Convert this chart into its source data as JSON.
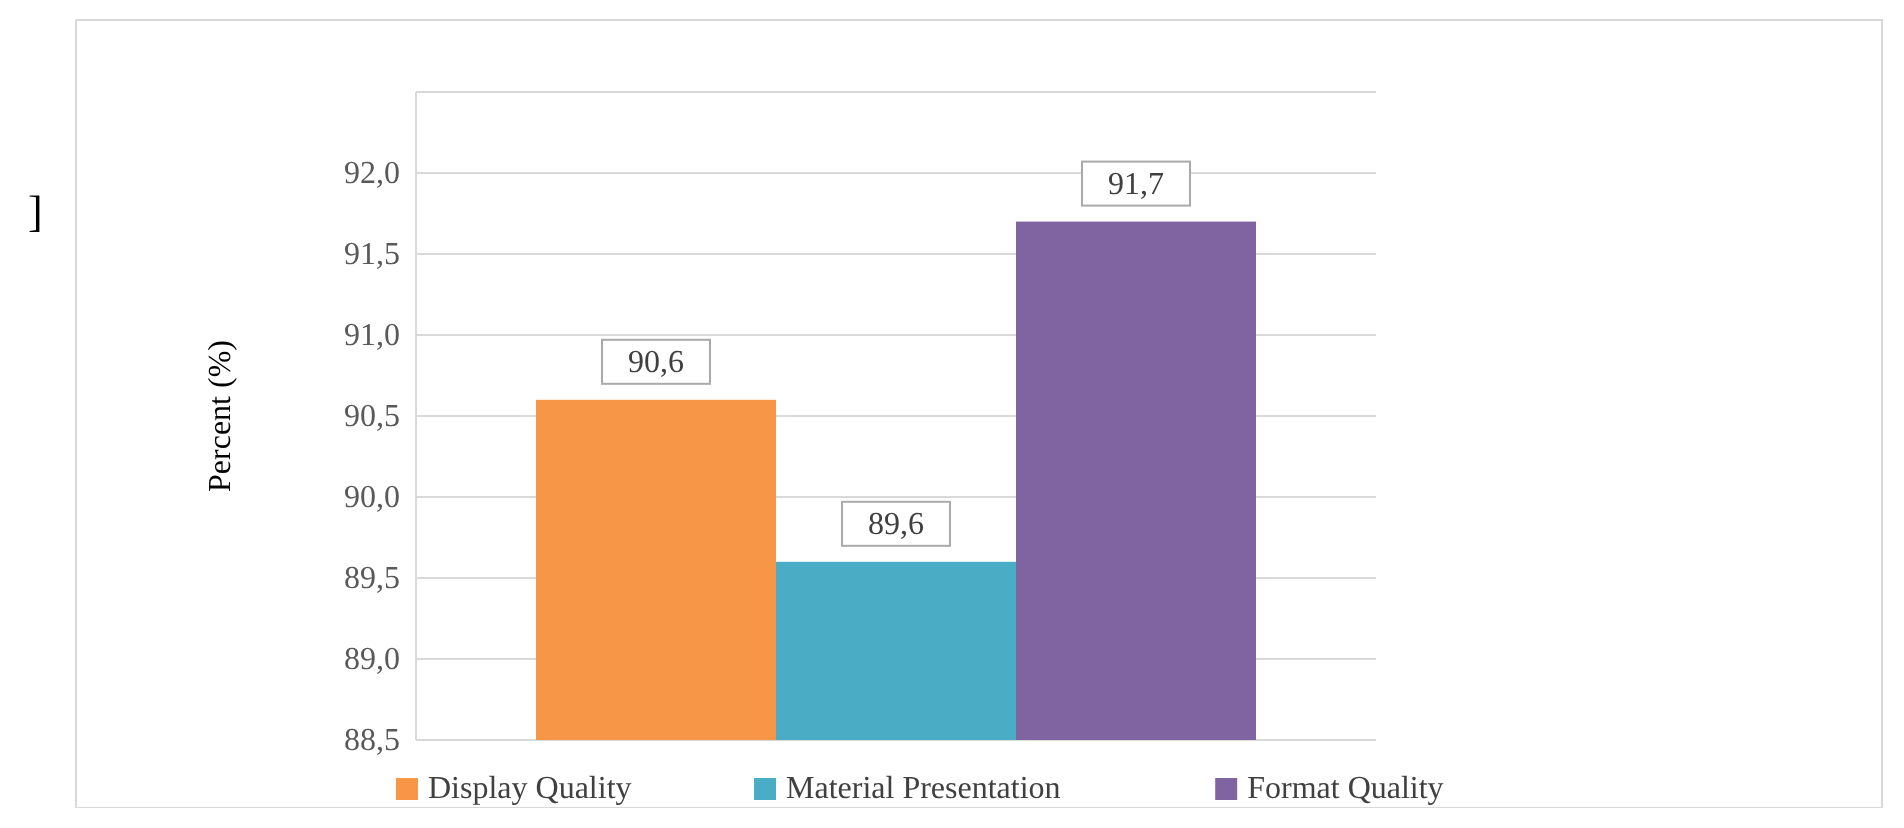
{
  "chart_data": {
    "type": "bar",
    "ylabel": "Percent  (%)",
    "categories": [
      null
    ],
    "series": [
      {
        "name": "Display Quality",
        "color": "#f79646",
        "values": [
          90.6
        ],
        "value_labels": [
          "90,6"
        ]
      },
      {
        "name": "Material Presentation",
        "color": "#4bacc6",
        "values": [
          89.6
        ],
        "value_labels": [
          "89,6"
        ]
      },
      {
        "name": "Format Quality",
        "color": "#8064a2",
        "values": [
          91.7
        ],
        "value_labels": [
          "91,7"
        ]
      }
    ],
    "ylim": [
      88.5,
      92.5
    ],
    "yticks": [
      {
        "value": 88.5,
        "label": "88,5"
      },
      {
        "value": 89,
        "label": "89,0"
      },
      {
        "value": 89.5,
        "label": "89,5"
      },
      {
        "value": 90,
        "label": "90,0"
      },
      {
        "value": 90.5,
        "label": "90,5"
      },
      {
        "value": 91,
        "label": "91,0"
      },
      {
        "value": 91.5,
        "label": "91,5"
      },
      {
        "value": 92,
        "label": "92,0"
      },
      {
        "value": 92.5,
        "label": null
      }
    ],
    "grid": "y",
    "legend": "bottom",
    "annotations": [
      "]"
    ]
  }
}
